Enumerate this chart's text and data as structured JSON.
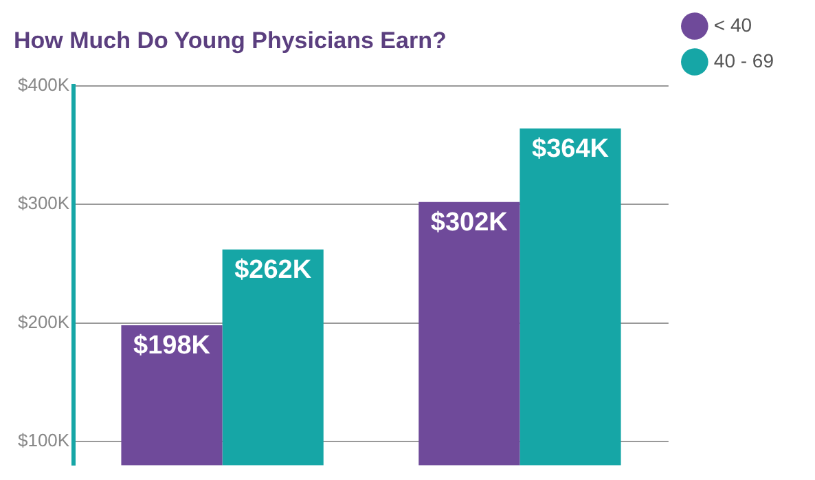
{
  "chart_data": {
    "type": "bar",
    "title": "How Much Do Young Physicians Earn?",
    "categories": [
      null,
      null
    ],
    "series": [
      {
        "name": "< 40",
        "color": "#6f4a9a",
        "values": [
          198,
          302
        ],
        "value_labels": [
          "$198K",
          "$302K"
        ]
      },
      {
        "name": "40 - 69",
        "color": "#16a6a6",
        "values": [
          262,
          364
        ],
        "value_labels": [
          "$262K",
          "$364K"
        ]
      }
    ],
    "ylim": [
      80,
      400
    ],
    "yticks": [
      {
        "value": 100,
        "label": "$100K"
      },
      {
        "value": 200,
        "label": "$200K"
      },
      {
        "value": 300,
        "label": "$300K"
      },
      {
        "value": 400,
        "label": "$400K"
      }
    ],
    "grid": "y",
    "legend": "top right"
  }
}
